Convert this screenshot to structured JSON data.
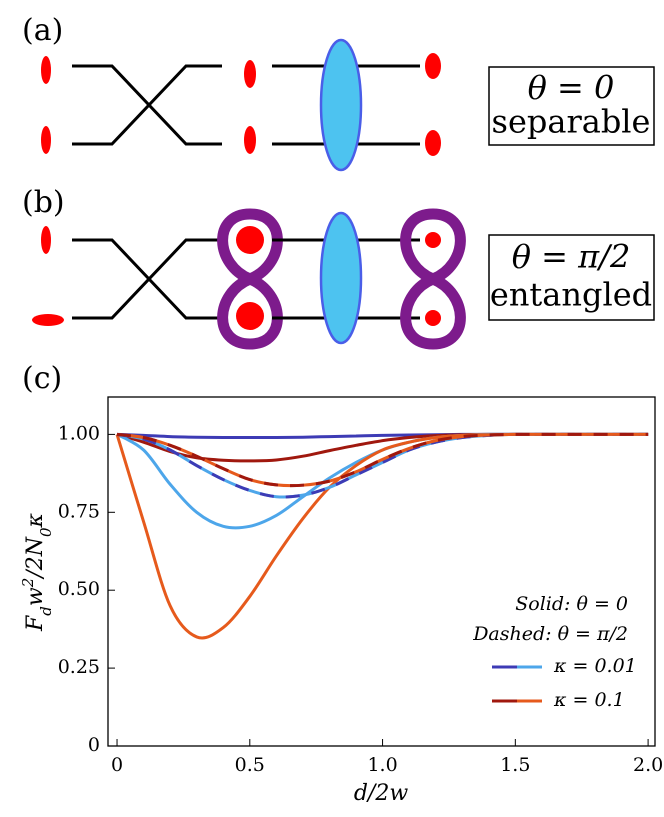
{
  "panels": {
    "a": {
      "label": "(a)",
      "line1": "θ = 0",
      "line2": "separable"
    },
    "b": {
      "label": "(b)",
      "line1": "θ = π/2",
      "line2": "entangled"
    },
    "c": {
      "label": "(c)"
    }
  },
  "chart_data": {
    "type": "line",
    "xlabel": "d/2w",
    "ylabel": [
      {
        "text": "F"
      },
      {
        "text": "d",
        "sub": true
      },
      {
        "text": "w"
      },
      {
        "text": "2",
        "sup": true
      },
      {
        "text": "/2N"
      },
      {
        "text": "0",
        "sub": true
      },
      {
        "text": "κ"
      }
    ],
    "x": [
      0,
      0.1,
      0.2,
      0.3,
      0.4,
      0.5,
      0.6,
      0.7,
      0.8,
      0.9,
      1,
      1.1,
      1.2,
      1.3,
      1.4,
      1.5,
      1.6,
      1.7,
      1.8,
      1.9,
      2
    ],
    "series": [
      {
        "color": "#3d3bb5",
        "linestyle": "solid",
        "values": [
          1,
          0.997,
          0.993,
          0.991,
          0.99,
          0.99,
          0.99,
          0.991,
          0.993,
          0.995,
          0.997,
          0.998,
          0.999,
          1,
          1,
          1,
          1,
          1,
          1,
          1,
          1
        ]
      },
      {
        "color": "#a0180e",
        "linestyle": "solid",
        "values": [
          1,
          0.975,
          0.945,
          0.925,
          0.917,
          0.915,
          0.918,
          0.93,
          0.948,
          0.965,
          0.98,
          0.99,
          0.996,
          0.999,
          1,
          1,
          1,
          1,
          1,
          1,
          1
        ]
      },
      {
        "color": "#4da6ea",
        "linestyle": "solid",
        "values": [
          1,
          0.95,
          0.84,
          0.75,
          0.705,
          0.705,
          0.74,
          0.8,
          0.86,
          0.91,
          0.95,
          0.975,
          0.99,
          0.997,
          1,
          1,
          1,
          1,
          1,
          1,
          1
        ]
      },
      {
        "color": "#e65a1c",
        "linestyle": "solid",
        "values": [
          1,
          0.72,
          0.45,
          0.35,
          0.38,
          0.48,
          0.61,
          0.73,
          0.83,
          0.9,
          0.95,
          0.975,
          0.99,
          0.997,
          0.999,
          1,
          1,
          1,
          1,
          1,
          1
        ]
      },
      {
        "color": "#4da6ea",
        "dash_color": "#3d3bb5",
        "linestyle": "dashed",
        "values": [
          1,
          0.985,
          0.95,
          0.9,
          0.855,
          0.82,
          0.8,
          0.805,
          0.83,
          0.87,
          0.91,
          0.95,
          0.975,
          0.99,
          0.997,
          1,
          1,
          1,
          1,
          1,
          1
        ]
      },
      {
        "color": "#e65a1c",
        "dash_color": "#a0180e",
        "linestyle": "dashed",
        "values": [
          1,
          0.99,
          0.965,
          0.93,
          0.89,
          0.855,
          0.838,
          0.837,
          0.85,
          0.88,
          0.92,
          0.955,
          0.98,
          0.993,
          0.998,
          1,
          1,
          1,
          1,
          1,
          1
        ]
      }
    ],
    "legend": {
      "header": [
        "Solid: θ = 0",
        "Dashed: θ = π/2"
      ],
      "entries": [
        {
          "label": "κ = 0.01",
          "colors": [
            "#3d3bb5",
            "#4da6ea"
          ]
        },
        {
          "label": "κ = 0.1",
          "colors": [
            "#a0180e",
            "#e65a1c"
          ]
        }
      ]
    },
    "xlim": [
      -0.034,
      2.026
    ],
    "ylim": [
      0,
      1.12
    ],
    "xticks": [
      0,
      0.5,
      {
        "value": 1,
        "label": "1.0"
      },
      1.5,
      {
        "value": 2,
        "label": "2.0"
      }
    ],
    "yticks": [
      0,
      0.25,
      {
        "value": 0.5,
        "label": "0.50"
      },
      0.75,
      {
        "value": 1,
        "label": "1.00"
      }
    ]
  }
}
